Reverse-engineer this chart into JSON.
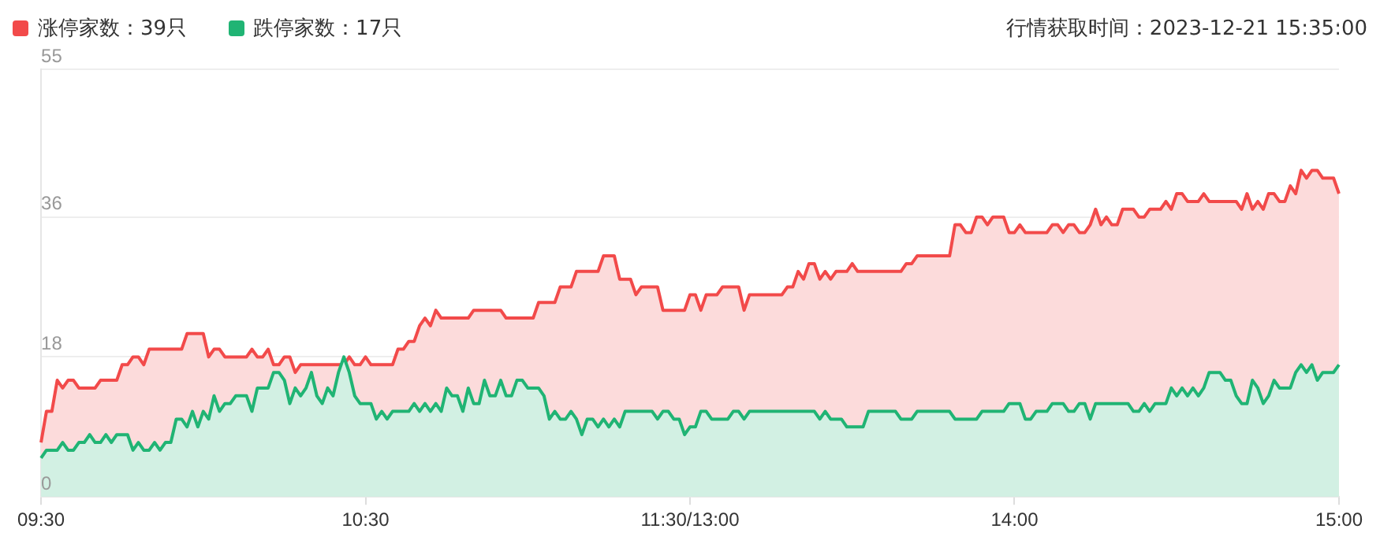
{
  "chart_data": {
    "type": "area",
    "title": "行情获取时间：2023-12-21 15:35:00",
    "categories": [
      "09:30",
      null,
      null,
      null,
      null,
      null,
      null,
      null,
      null,
      null,
      null,
      null,
      null,
      null,
      null,
      null,
      null,
      null,
      null,
      null,
      null,
      null,
      null,
      null,
      null,
      null,
      null,
      null,
      null,
      null,
      null,
      null,
      null,
      null,
      null,
      null,
      null,
      null,
      null,
      null,
      null,
      null,
      null,
      null,
      null,
      null,
      null,
      null,
      null,
      null,
      null,
      null,
      null,
      null,
      null,
      null,
      null,
      null,
      null,
      null,
      "10:30",
      null,
      null,
      null,
      null,
      null,
      null,
      null,
      null,
      null,
      null,
      null,
      null,
      null,
      null,
      null,
      null,
      null,
      null,
      null,
      null,
      null,
      null,
      null,
      null,
      null,
      null,
      null,
      null,
      null,
      null,
      null,
      null,
      null,
      null,
      null,
      null,
      null,
      null,
      null,
      null,
      null,
      null,
      null,
      null,
      null,
      null,
      null,
      null,
      null,
      null,
      null,
      null,
      null,
      null,
      null,
      null,
      null,
      null,
      null,
      "11:30/13:00",
      null,
      null,
      null,
      null,
      null,
      null,
      null,
      null,
      null,
      null,
      null,
      null,
      null,
      null,
      null,
      null,
      null,
      null,
      null,
      null,
      null,
      null,
      null,
      null,
      null,
      null,
      null,
      null,
      null,
      null,
      null,
      null,
      null,
      null,
      null,
      null,
      null,
      null,
      null,
      null,
      null,
      null,
      null,
      null,
      null,
      null,
      null,
      null,
      null,
      null,
      null,
      null,
      null,
      null,
      null,
      null,
      null,
      null,
      null,
      "14:00",
      null,
      null,
      null,
      null,
      null,
      null,
      null,
      null,
      null,
      null,
      null,
      null,
      null,
      null,
      null,
      null,
      null,
      null,
      null,
      null,
      null,
      null,
      null,
      null,
      null,
      null,
      null,
      null,
      null,
      null,
      null,
      null,
      null,
      null,
      null,
      null,
      null,
      null,
      null,
      null,
      null,
      null,
      null,
      null,
      null,
      null,
      null,
      null,
      null,
      null,
      null,
      null,
      null,
      null,
      null,
      null,
      null,
      null,
      null,
      "15:00"
    ],
    "ylim": [
      0,
      55
    ],
    "yticks": [
      0,
      18,
      36,
      55
    ],
    "grid": "y",
    "legend": "top left",
    "series": [
      {
        "name": "涨停家数：39只",
        "color": "#f24a4a",
        "values": [
          7,
          11,
          11,
          15,
          14,
          15,
          15,
          14,
          14,
          14,
          14,
          15,
          15,
          15,
          15,
          17,
          17,
          18,
          18,
          17,
          19,
          19,
          19,
          19,
          19,
          19,
          19,
          21,
          21,
          21,
          21,
          18,
          19,
          19,
          18,
          18,
          18,
          18,
          18,
          19,
          18,
          18,
          19,
          17,
          17,
          18,
          18,
          16,
          17,
          17,
          17,
          17,
          17,
          17,
          17,
          17,
          17,
          18,
          17,
          17,
          18,
          17,
          17,
          17,
          17,
          17,
          19,
          19,
          20,
          20,
          22,
          23,
          22,
          24,
          23,
          23,
          23,
          23,
          23,
          23,
          24,
          24,
          24,
          24,
          24,
          24,
          23,
          23,
          23,
          23,
          23,
          23,
          25,
          25,
          25,
          25,
          27,
          27,
          27,
          29,
          29,
          29,
          29,
          29,
          31,
          31,
          31,
          28,
          28,
          28,
          26,
          27,
          27,
          27,
          27,
          24,
          24,
          24,
          24,
          24,
          26,
          26,
          24,
          26,
          26,
          26,
          27,
          27,
          27,
          27,
          24,
          26,
          26,
          26,
          26,
          26,
          26,
          26,
          27,
          27,
          29,
          28,
          30,
          30,
          28,
          29,
          28,
          29,
          29,
          29,
          30,
          29,
          29,
          29,
          29,
          29,
          29,
          29,
          29,
          29,
          30,
          30,
          31,
          31,
          31,
          31,
          31,
          31,
          31,
          35,
          35,
          34,
          34,
          36,
          36,
          35,
          36,
          36,
          36,
          34,
          34,
          35,
          34,
          34,
          34,
          34,
          34,
          35,
          35,
          34,
          35,
          35,
          34,
          34,
          35,
          37,
          35,
          36,
          35,
          35,
          37,
          37,
          37,
          36,
          36,
          37,
          37,
          37,
          38,
          37,
          39,
          39,
          38,
          38,
          38,
          39,
          38,
          38,
          38,
          38,
          38,
          38,
          37,
          39,
          37,
          38,
          37,
          39,
          39,
          38,
          38,
          40,
          39,
          42,
          41,
          42,
          42,
          41,
          41,
          41,
          39
        ]
      },
      {
        "name": "跌停家数：17只",
        "color": "#20b474",
        "values": [
          5,
          6,
          6,
          6,
          7,
          6,
          6,
          7,
          7,
          8,
          7,
          7,
          8,
          7,
          8,
          8,
          8,
          6,
          7,
          6,
          6,
          7,
          6,
          7,
          7,
          10,
          10,
          9,
          11,
          9,
          11,
          10,
          13,
          11,
          12,
          12,
          13,
          13,
          13,
          11,
          14,
          14,
          14,
          16,
          16,
          15,
          12,
          14,
          13,
          14,
          16,
          13,
          12,
          14,
          13,
          16,
          18,
          16,
          13,
          12,
          12,
          12,
          10,
          11,
          10,
          11,
          11,
          11,
          11,
          12,
          11,
          12,
          11,
          12,
          11,
          14,
          13,
          13,
          11,
          14,
          12,
          12,
          15,
          13,
          13,
          15,
          13,
          13,
          15,
          15,
          14,
          14,
          14,
          13,
          10,
          11,
          10,
          10,
          11,
          10,
          8,
          10,
          10,
          9,
          10,
          9,
          10,
          9,
          11,
          11,
          11,
          11,
          11,
          11,
          10,
          11,
          11,
          10,
          10,
          8,
          9,
          9,
          11,
          11,
          10,
          10,
          10,
          10,
          11,
          11,
          10,
          11,
          11,
          11,
          11,
          11,
          11,
          11,
          11,
          11,
          11,
          11,
          11,
          11,
          10,
          11,
          10,
          10,
          10,
          9,
          9,
          9,
          9,
          11,
          11,
          11,
          11,
          11,
          11,
          10,
          10,
          10,
          11,
          11,
          11,
          11,
          11,
          11,
          11,
          10,
          10,
          10,
          10,
          10,
          11,
          11,
          11,
          11,
          11,
          12,
          12,
          12,
          10,
          10,
          11,
          11,
          11,
          12,
          12,
          12,
          11,
          11,
          12,
          12,
          10,
          12,
          12,
          12,
          12,
          12,
          12,
          12,
          11,
          11,
          12,
          11,
          12,
          12,
          12,
          14,
          13,
          14,
          13,
          14,
          13,
          14,
          16,
          16,
          16,
          15,
          15,
          13,
          12,
          12,
          15,
          14,
          12,
          13,
          15,
          14,
          14,
          14,
          16,
          17,
          16,
          17,
          15,
          16,
          16,
          16,
          17
        ]
      }
    ]
  }
}
